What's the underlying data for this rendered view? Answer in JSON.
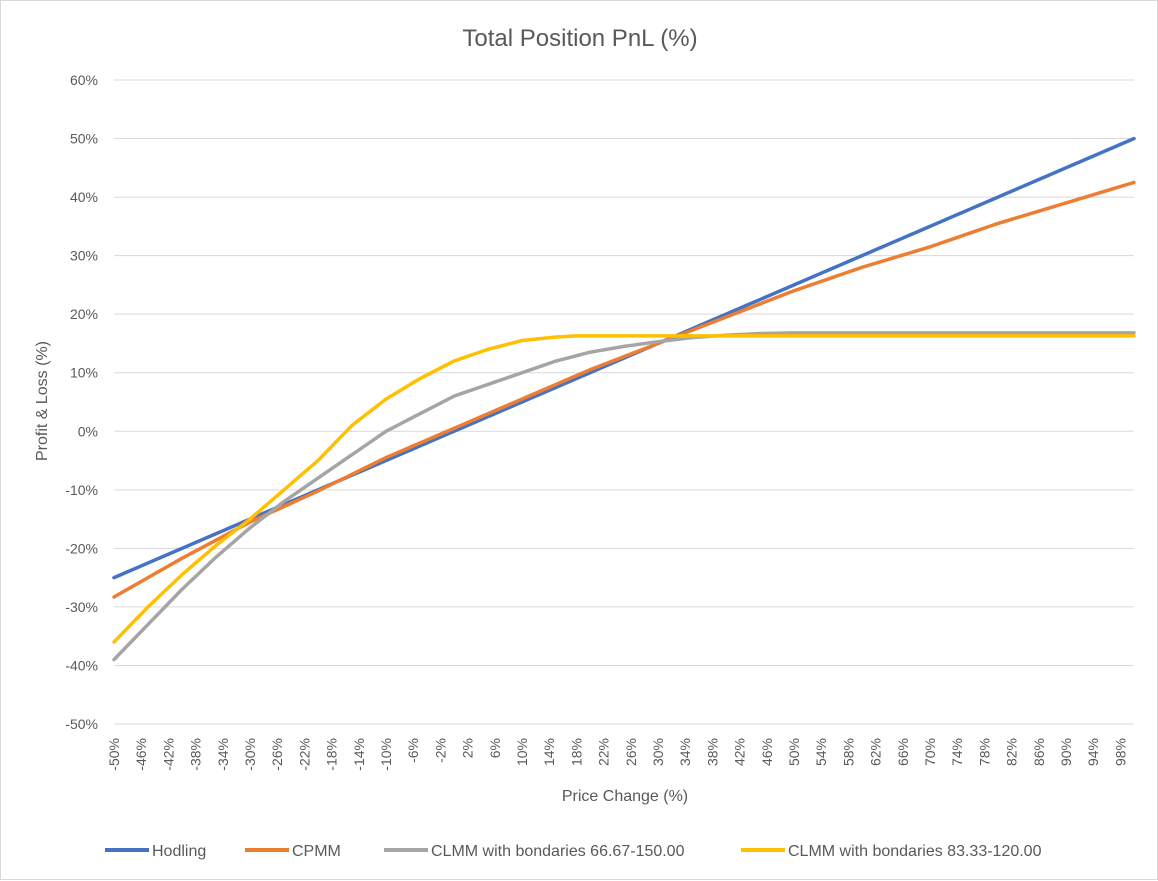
{
  "chart_data": {
    "type": "line",
    "title": "Total Position PnL (%)",
    "xlabel": "Price Change (%)",
    "ylabel": "Profit & Loss (%)",
    "x_range": [
      -50,
      100
    ],
    "x_step": 1,
    "ylim": [
      -50,
      60
    ],
    "y_ticks": [
      "-50%",
      "-40%",
      "-30%",
      "-20%",
      "-10%",
      "0%",
      "10%",
      "20%",
      "30%",
      "40%",
      "50%",
      "60%"
    ],
    "x_ticks": [
      "-50%",
      "-46%",
      "-42%",
      "-38%",
      "-34%",
      "-30%",
      "-26%",
      "-22%",
      "-18%",
      "-14%",
      "-10%",
      "-6%",
      "-2%",
      "2%",
      "6%",
      "10%",
      "14%",
      "18%",
      "22%",
      "26%",
      "30%",
      "34%",
      "38%",
      "42%",
      "46%",
      "50%",
      "54%",
      "58%",
      "62%",
      "66%",
      "70%",
      "74%",
      "78%",
      "82%",
      "86%",
      "90%",
      "94%",
      "98%"
    ],
    "grid": "horizontal",
    "legend_position": "bottom",
    "series": [
      {
        "name": "Hodling",
        "color": "#4472C4",
        "x": [
          -50,
          -40,
          -30,
          -20,
          -10,
          0,
          10,
          20,
          30,
          40,
          50,
          60,
          70,
          80,
          90,
          100
        ],
        "y": [
          -25.0,
          -20.0,
          -15.0,
          -10.0,
          -5.0,
          0.0,
          5.0,
          10.0,
          15.0,
          20.0,
          25.0,
          30.0,
          35.0,
          40.0,
          45.0,
          50.0
        ]
      },
      {
        "name": "CPMM",
        "color": "#ED7D31",
        "x": [
          -50,
          -40,
          -30,
          -20,
          -10,
          0,
          10,
          20,
          30,
          40,
          50,
          60,
          70,
          80,
          90,
          100
        ],
        "y": [
          -28.3,
          -21.7,
          -15.5,
          -10.2,
          -4.5,
          0.5,
          5.5,
          10.5,
          15.0,
          19.5,
          24.0,
          28.0,
          31.5,
          35.5,
          39.0,
          42.5
        ]
      },
      {
        "name": "CLMM with bondaries 66.67-150.00",
        "color": "#A5A5A5",
        "x": [
          -50,
          -45,
          -40,
          -35,
          -30,
          -25,
          -20,
          -15,
          -10,
          -5,
          0,
          5,
          10,
          15,
          20,
          25,
          30,
          35,
          40,
          45,
          50,
          100
        ],
        "y": [
          -39.0,
          -33.0,
          -27.0,
          -21.5,
          -16.5,
          -12.0,
          -8.0,
          -4.0,
          0.0,
          3.0,
          6.0,
          8.0,
          10.0,
          12.0,
          13.5,
          14.5,
          15.3,
          16.0,
          16.4,
          16.7,
          16.8,
          16.8
        ]
      },
      {
        "name": "CLMM with bondaries 83.33-120.00",
        "color": "#FFC000",
        "x": [
          -50,
          -45,
          -40,
          -35,
          -30,
          -25,
          -20,
          -15,
          -10,
          -5,
          0,
          5,
          10,
          15,
          18,
          20,
          100
        ],
        "y": [
          -36.0,
          -30.0,
          -24.5,
          -19.5,
          -15.0,
          -10.0,
          -5.0,
          1.0,
          5.5,
          9.0,
          12.0,
          14.0,
          15.5,
          16.1,
          16.3,
          16.3,
          16.3
        ]
      }
    ]
  }
}
